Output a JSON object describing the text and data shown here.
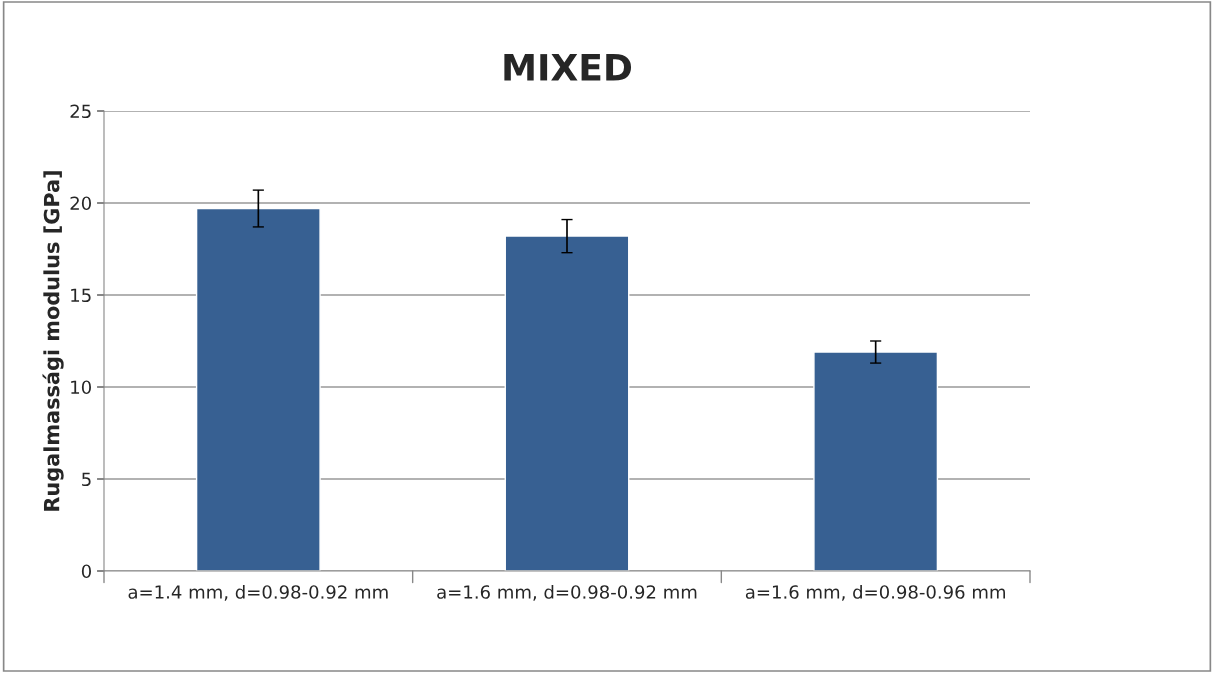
{
  "chart_data": {
    "type": "bar",
    "title": "MIXED",
    "ylabel": "Rugalmassági modulus [GPa]",
    "categories": [
      "a=1.4 mm, d=0.98-0.92 mm",
      "a=1.6 mm, d=0.98-0.92 mm",
      "a=1.6 mm, d=0.98-0.96 mm"
    ],
    "values": [
      19.7,
      18.2,
      11.9
    ],
    "errors": [
      1.0,
      0.9,
      0.6
    ],
    "color": "#376092",
    "ylim": [
      0,
      25
    ],
    "yticks": [
      0,
      5,
      10,
      15,
      20,
      25
    ],
    "grid": "y",
    "legend": false
  }
}
